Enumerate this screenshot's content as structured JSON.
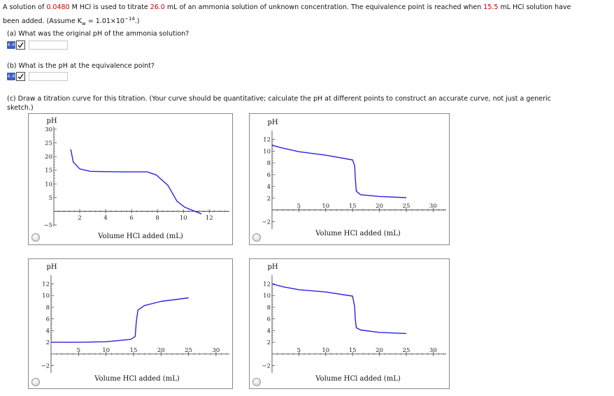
{
  "problem": {
    "part1": "A solution of ",
    "concentration": "0.0480",
    "part2": " M HCl is used to titrate ",
    "volume": "26.0",
    "part3": " mL of an ammonia solution of unknown concentration. The equivalence point is reached when ",
    "equiv_volume": "15.5",
    "part4": " mL HCl solution have",
    "line2": "been added. (Assume K",
    "line2_sub": "w",
    "line2_rest": " = 1.01×10",
    "line2_exp": "−14",
    "line2_end": ".)"
  },
  "question_a": "(a) What was the original pH of the ammonia solution?",
  "question_b": "(b) What is the pH at the equivalence point?",
  "question_c_line1": "(c) Draw a titration curve for this titration. (Your curve should be quantitative; calculate the pH at different points to construct an accurate curve, not just a generic",
  "question_c_line2": "sketch.)",
  "answer_badge": "4.0",
  "answer_a_value": "",
  "answer_b_value": "",
  "colors": {
    "curve": "#2b22e0",
    "red": "#cc0000",
    "badge": "#3b5fbf"
  },
  "chart_data": [
    {
      "type": "line",
      "ylabel": "pH",
      "xlabel": "Volume HCl added (mL)",
      "xlim": [
        0,
        13.5
      ],
      "ylim": [
        -5,
        30
      ],
      "xticks": [
        2,
        4,
        6,
        8,
        10,
        12
      ],
      "yticks": [
        -5,
        5,
        10,
        15,
        20,
        25,
        30
      ],
      "x": [
        1.3,
        1.5,
        2.0,
        2.8,
        3.8,
        5.5,
        7.2,
        7.9,
        8.8,
        9.5,
        10.1,
        11.4
      ],
      "y": [
        22.7,
        18.0,
        15.5,
        14.6,
        14.5,
        14.4,
        14.4,
        13.3,
        9.5,
        3.7,
        1.5,
        -1.0
      ]
    },
    {
      "type": "line",
      "ylabel": "pH",
      "xlabel": "Volume HCl added (mL)",
      "xlim": [
        0,
        32.3
      ],
      "ylim": [
        -3,
        13
      ],
      "xticks": [
        5,
        10,
        15,
        20,
        25,
        30
      ],
      "yticks": [
        -2,
        2,
        4,
        6,
        8,
        10,
        12
      ],
      "x": [
        0,
        2,
        5,
        10,
        15,
        15.4,
        15.5,
        15.7,
        16.5,
        20,
        25
      ],
      "y": [
        11.0,
        10.5,
        9.9,
        9.3,
        8.5,
        7.5,
        5.5,
        3.2,
        2.6,
        2.3,
        2.1
      ]
    },
    {
      "type": "line",
      "ylabel": "pH",
      "xlabel": "Volume HCl added (mL)",
      "xlim": [
        0,
        32.3
      ],
      "ylim": [
        -3,
        13
      ],
      "xticks": [
        5,
        10,
        15,
        20,
        25,
        30
      ],
      "yticks": [
        -2,
        2,
        4,
        6,
        8,
        10,
        12
      ],
      "x": [
        0,
        5,
        10,
        14.5,
        15.3,
        15.5,
        15.8,
        17,
        20,
        25
      ],
      "y": [
        2.0,
        2.0,
        2.1,
        2.5,
        3.0,
        5.5,
        7.5,
        8.3,
        9.0,
        9.6
      ]
    },
    {
      "type": "line",
      "ylabel": "pH",
      "xlabel": "Volume HCl added (mL)",
      "xlim": [
        0,
        32.3
      ],
      "ylim": [
        -3,
        13
      ],
      "xticks": [
        5,
        10,
        15,
        20,
        25,
        30
      ],
      "yticks": [
        -2,
        2,
        4,
        6,
        8,
        10,
        12
      ],
      "x": [
        0,
        2,
        5,
        10,
        15,
        15.4,
        15.5,
        15.7,
        16.5,
        20,
        25
      ],
      "y": [
        12.0,
        11.5,
        11.0,
        10.6,
        9.9,
        8.0,
        6.0,
        4.5,
        4.1,
        3.7,
        3.5
      ]
    }
  ]
}
